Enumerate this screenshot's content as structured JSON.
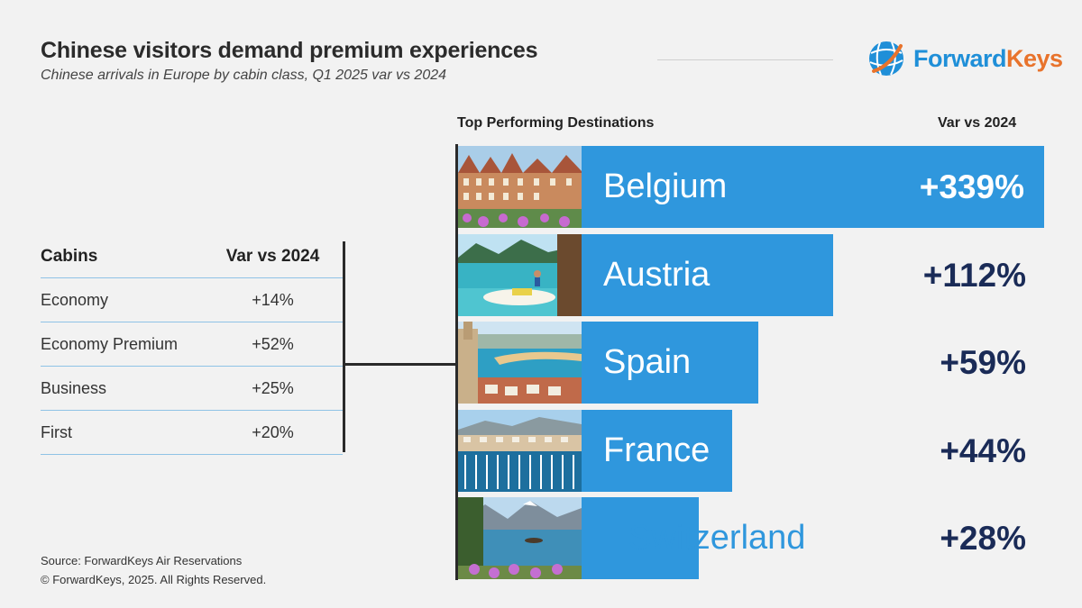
{
  "header": {
    "title": "Chinese visitors demand premium experiences",
    "subtitle": "Chinese arrivals in Europe by cabin class, Q1 2025 var vs 2024",
    "logo_text_part1": "Forward",
    "logo_text_part2": "Keys"
  },
  "cabins_table": {
    "col_cabin": "Cabins",
    "col_var": "Var vs 2024",
    "rows": [
      {
        "cabin": "Economy",
        "var": "+14%"
      },
      {
        "cabin": "Economy Premium",
        "var": "+52%"
      },
      {
        "cabin": "Business",
        "var": "+25%"
      },
      {
        "cabin": "First",
        "var": "+20%"
      }
    ]
  },
  "destinations": {
    "heading": "Top Performing Destinations",
    "var_heading": "Var vs 2024"
  },
  "source": {
    "line1": "Source: ForwardKeys Air Reservations",
    "line2": "© ForwardKeys, 2025. All Rights Reserved."
  },
  "colors": {
    "bar": "#2f97dd",
    "value_text": "#1a2b57",
    "logo_blue": "#1f8fd8",
    "logo_orange": "#e8732c"
  },
  "chart_data": [
    {
      "type": "table",
      "columns": [
        "Cabins",
        "Var vs 2024"
      ],
      "rows": [
        [
          "Economy",
          "+14%"
        ],
        [
          "Economy Premium",
          "+52%"
        ],
        [
          "Business",
          "+25%"
        ],
        [
          "First",
          "+20%"
        ]
      ]
    },
    {
      "type": "bar",
      "orientation": "horizontal",
      "title": "Top Performing Destinations",
      "categories": [
        "Belgium",
        "Austria",
        "Spain",
        "France",
        "Switzerland"
      ],
      "values": [
        339,
        112,
        59,
        44,
        28
      ],
      "labels": [
        "+339%",
        "+112%",
        "+59%",
        "+44%",
        "+28%"
      ],
      "value_heading": "Var vs 2024",
      "unit": "%"
    }
  ]
}
